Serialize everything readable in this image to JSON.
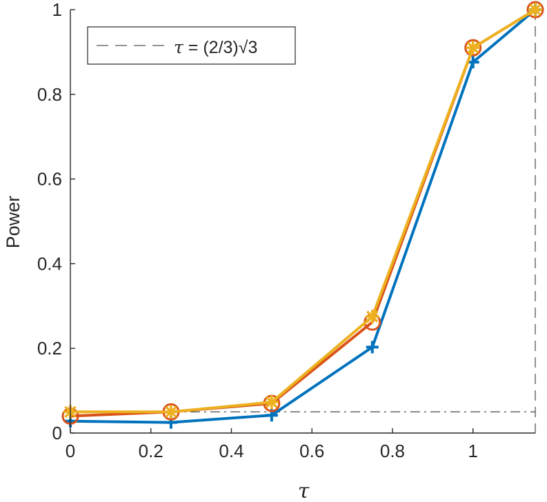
{
  "chart_data": {
    "type": "line",
    "xlabel": "τ",
    "ylabel": "Power",
    "xlim": [
      0,
      1.1547
    ],
    "ylim": [
      0,
      1
    ],
    "xticks": [
      "0",
      "0.2",
      "0.4",
      "0.6",
      "0.8",
      "1"
    ],
    "yticks": [
      "0",
      "0.2",
      "0.4",
      "0.6",
      "0.8",
      "1"
    ],
    "x": [
      0,
      0.25,
      0.5,
      0.75,
      1,
      1.1547
    ],
    "series": [
      {
        "values": [
          0.028,
          0.025,
          0.042,
          0.203,
          0.876,
          1.0
        ],
        "color": "#0072BD",
        "marker": "plus"
      },
      {
        "values": [
          0.04,
          0.05,
          0.07,
          0.262,
          0.91,
          1.0
        ],
        "color": "#D95319",
        "marker": "circle"
      },
      {
        "values": [
          0.05,
          0.05,
          0.073,
          0.275,
          0.91,
          1.0
        ],
        "color": "#EDB120",
        "marker": "asterisk"
      }
    ],
    "reference_lines": [
      {
        "orientation": "horizontal",
        "value": 0.05,
        "style": "dash-dot",
        "color": "#555555"
      },
      {
        "orientation": "vertical",
        "value": 1.1547,
        "style": "dashed",
        "color": "#555555"
      }
    ],
    "legend": {
      "position": "top-left",
      "prefix": "τ",
      "text": " = (2/3)√3"
    },
    "grid": false
  }
}
